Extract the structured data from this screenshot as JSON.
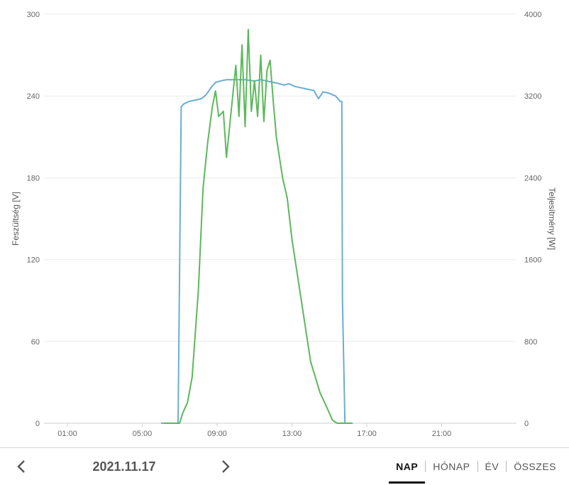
{
  "chart_data": {
    "type": "line",
    "x_unit": "time of day",
    "x_ticks": [
      "01:00",
      "05:00",
      "09:00",
      "13:00",
      "17:00",
      "21:00"
    ],
    "xlim": [
      "23:45",
      "25:00"
    ],
    "y_left": {
      "label": "Feszültség [V]",
      "ticks": [
        "0",
        "60",
        "120",
        "180",
        "240",
        "300"
      ],
      "range": [
        0,
        300
      ]
    },
    "y_right": {
      "label": "Teljesítmény [W]",
      "ticks": [
        "0",
        "800",
        "1600",
        "2400",
        "3200",
        "4000"
      ],
      "range": [
        0,
        4000
      ]
    },
    "grid": true,
    "legend": "none",
    "series": [
      {
        "axis": "left",
        "color": "#6aaed0",
        "x": [
          "06:00",
          "06:55",
          "07:05",
          "07:12",
          "07:30",
          "07:50",
          "08:10",
          "08:25",
          "08:40",
          "08:55",
          "09:10",
          "09:30",
          "10:00",
          "10:30",
          "11:00",
          "11:20",
          "11:40",
          "12:00",
          "12:20",
          "12:35",
          "12:50",
          "13:10",
          "13:30",
          "13:50",
          "14:10",
          "14:25",
          "14:40",
          "15:00",
          "15:20",
          "15:35",
          "15:40",
          "15:42",
          "15:50",
          "16:15"
        ],
        "y": [
          0,
          0,
          232,
          234,
          236,
          237,
          238,
          241,
          246,
          250,
          251,
          252,
          252,
          252,
          251,
          252,
          251,
          250,
          249,
          248,
          249,
          247,
          246,
          245,
          244,
          238,
          243,
          242,
          240,
          236,
          236,
          90,
          0,
          0
        ]
      },
      {
        "axis": "right",
        "color": "#5cb85c",
        "x": [
          "06:10",
          "06:50",
          "07:00",
          "07:10",
          "07:25",
          "07:40",
          "08:00",
          "08:15",
          "08:30",
          "08:45",
          "08:55",
          "09:05",
          "09:20",
          "09:30",
          "09:50",
          "10:00",
          "10:10",
          "10:20",
          "10:30",
          "10:40",
          "10:50",
          "11:00",
          "11:10",
          "11:20",
          "11:30",
          "11:40",
          "11:50",
          "12:00",
          "12:10",
          "12:20",
          "12:30",
          "12:45",
          "13:00",
          "13:15",
          "13:30",
          "13:45",
          "14:00",
          "14:15",
          "14:30",
          "14:45",
          "15:00",
          "15:10",
          "15:25",
          "15:35",
          "15:45",
          "16:10"
        ],
        "y": [
          0,
          0,
          0,
          100,
          200,
          450,
          1300,
          2300,
          2750,
          3100,
          3250,
          3000,
          3050,
          2600,
          3200,
          3500,
          3000,
          3700,
          2900,
          3850,
          3050,
          3350,
          3000,
          3600,
          2950,
          3450,
          3550,
          3150,
          2800,
          2600,
          2400,
          2200,
          1800,
          1500,
          1200,
          900,
          600,
          450,
          300,
          200,
          100,
          30,
          0,
          0,
          0,
          0
        ]
      }
    ]
  },
  "footer": {
    "date": "2021.11.17",
    "tabs": [
      "NAP",
      "HÓNAP",
      "ÉV",
      "ÖSSZES"
    ],
    "active_tab": "NAP"
  }
}
